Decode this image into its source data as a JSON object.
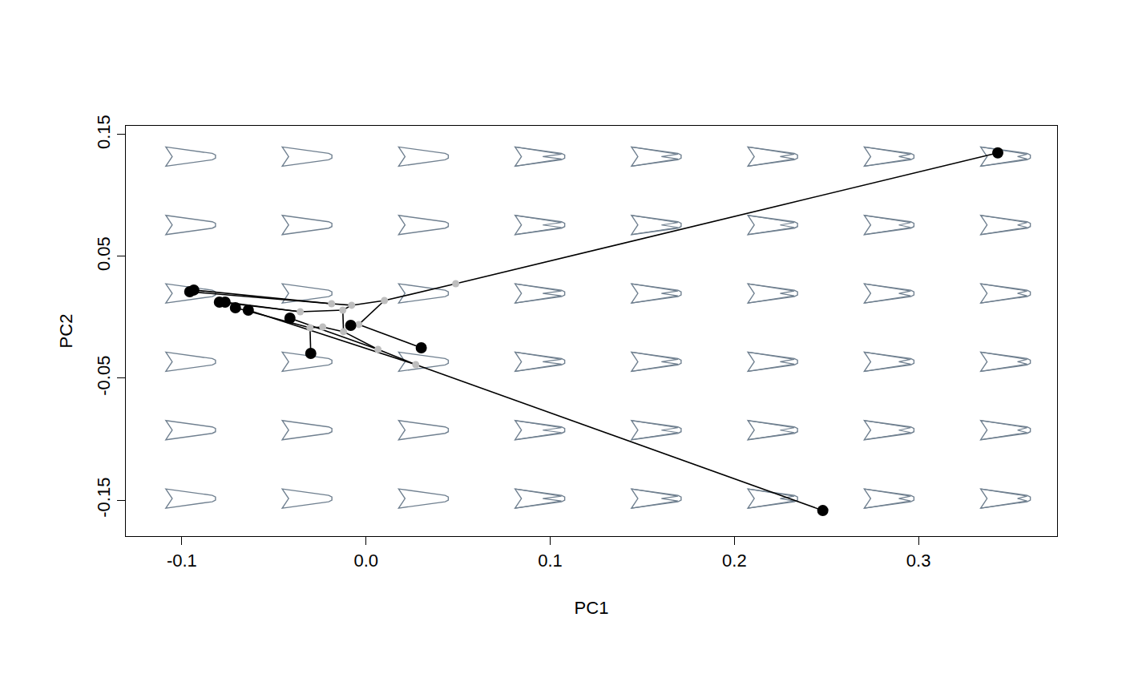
{
  "chart_data": {
    "type": "scatter",
    "x_label": "PC1",
    "y_label": "PC2",
    "xlim": [
      -0.1304,
      0.3752
    ],
    "ylim": [
      -0.1796,
      0.1572
    ],
    "xticks": [
      {
        "value": -0.1,
        "label": "-0.1"
      },
      {
        "value": 0,
        "label": "0.0"
      },
      {
        "value": 0.1,
        "label": "0.1"
      },
      {
        "value": 0.2,
        "label": "0.2"
      },
      {
        "value": 0.3,
        "label": "0.3"
      }
    ],
    "yticks": [
      0.15,
      0.05,
      -0.05,
      -0.15
    ],
    "grid": false,
    "series": [
      {
        "color": "#000000",
        "marker": "circle",
        "x": [
          0.343,
          0.248,
          -0.0957,
          -0.0935,
          -0.0796,
          -0.0765,
          -0.0709,
          -0.0639,
          -0.0413,
          -0.0083,
          0.03,
          -0.03
        ],
        "y": [
          0.135,
          -0.1586,
          0.021,
          0.0224,
          0.0125,
          0.0125,
          0.0079,
          0.0059,
          -0.0007,
          -0.0066,
          -0.025,
          -0.0296
        ]
      },
      {
        "color": "#bebebe",
        "marker": "circle",
        "x": [
          0.0487,
          0.01,
          -0.0078,
          -0.0187,
          -0.0126,
          -0.0357,
          -0.0039,
          -0.0122,
          -0.0235,
          -0.0304,
          0.0065,
          0.027
        ],
        "y": [
          0.0276,
          0.0138,
          0.0099,
          0.0112,
          0.0059,
          0.0046,
          -0.0059,
          -0.0118,
          -0.0079,
          -0.0086,
          -0.0263,
          -0.0388
        ]
      }
    ],
    "edges": [
      [
        12,
        0
      ],
      [
        13,
        12
      ],
      [
        18,
        13
      ],
      [
        18,
        9
      ],
      [
        18,
        10
      ],
      [
        13,
        14
      ],
      [
        14,
        15
      ],
      [
        15,
        2
      ],
      [
        15,
        3
      ],
      [
        14,
        16
      ],
      [
        16,
        17
      ],
      [
        17,
        4
      ],
      [
        17,
        5
      ],
      [
        16,
        19
      ],
      [
        19,
        20
      ],
      [
        20,
        21
      ],
      [
        21,
        11
      ],
      [
        21,
        6
      ],
      [
        19,
        22
      ],
      [
        22,
        23
      ],
      [
        23,
        1
      ],
      [
        23,
        7
      ],
      [
        22,
        8
      ]
    ],
    "edge_color": "#000000",
    "background_color": "#708090"
  }
}
